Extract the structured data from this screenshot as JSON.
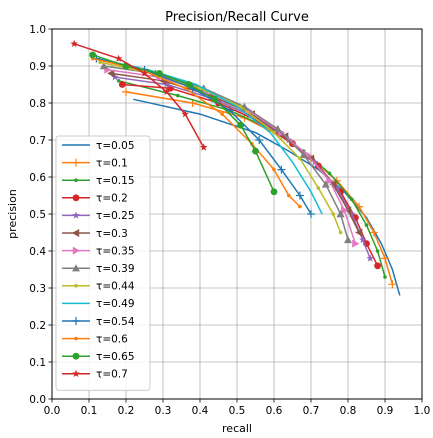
{
  "chart_data": {
    "type": "line",
    "title": "Precision/Recall Curve",
    "xlabel": "recall",
    "ylabel": "precision",
    "xlim": [
      0.0,
      1.0
    ],
    "ylim": [
      0.0,
      1.0
    ],
    "xticks": [
      "0.0",
      "0.1",
      "0.2",
      "0.3",
      "0.4",
      "0.5",
      "0.6",
      "0.7",
      "0.8",
      "0.9",
      "1.0"
    ],
    "yticks": [
      "0.0",
      "0.1",
      "0.2",
      "0.3",
      "0.4",
      "0.5",
      "0.6",
      "0.7",
      "0.8",
      "0.9",
      "1.0"
    ],
    "grid": true,
    "legend_position": "lower-left",
    "series": [
      {
        "name": "τ=0.05",
        "color": "#1f77b4",
        "marker": "none",
        "x": [
          0.22,
          0.4,
          0.55,
          0.64,
          0.72,
          0.79,
          0.85,
          0.89,
          0.92,
          0.94
        ],
        "y": [
          0.81,
          0.77,
          0.72,
          0.67,
          0.62,
          0.56,
          0.49,
          0.42,
          0.35,
          0.28
        ]
      },
      {
        "name": "τ=0.1",
        "color": "#ff7f0e",
        "marker": "plus",
        "x": [
          0.2,
          0.38,
          0.52,
          0.62,
          0.7,
          0.77,
          0.83,
          0.87,
          0.9,
          0.92
        ],
        "y": [
          0.83,
          0.8,
          0.76,
          0.71,
          0.65,
          0.59,
          0.52,
          0.45,
          0.38,
          0.31
        ]
      },
      {
        "name": "τ=0.15",
        "color": "#2ca02c",
        "marker": "dot",
        "x": [
          0.18,
          0.34,
          0.48,
          0.59,
          0.68,
          0.75,
          0.81,
          0.85,
          0.88,
          0.9
        ],
        "y": [
          0.86,
          0.82,
          0.78,
          0.73,
          0.67,
          0.61,
          0.54,
          0.47,
          0.4,
          0.33
        ]
      },
      {
        "name": "τ=0.2",
        "color": "#d62728",
        "marker": "circle",
        "x": [
          0.19,
          0.32,
          0.45,
          0.56,
          0.65,
          0.72,
          0.78,
          0.82,
          0.85,
          0.88
        ],
        "y": [
          0.85,
          0.84,
          0.8,
          0.75,
          0.69,
          0.63,
          0.56,
          0.49,
          0.42,
          0.36
        ]
      },
      {
        "name": "τ=0.25",
        "color": "#9467bd",
        "marker": "star",
        "x": [
          0.17,
          0.31,
          0.44,
          0.55,
          0.64,
          0.71,
          0.77,
          0.81,
          0.84,
          0.86
        ],
        "y": [
          0.87,
          0.85,
          0.81,
          0.76,
          0.7,
          0.64,
          0.57,
          0.5,
          0.43,
          0.38
        ]
      },
      {
        "name": "τ=0.3",
        "color": "#8c564b",
        "marker": "triangle-left",
        "x": [
          0.16,
          0.3,
          0.43,
          0.54,
          0.63,
          0.7,
          0.76,
          0.8,
          0.83
        ],
        "y": [
          0.88,
          0.86,
          0.82,
          0.77,
          0.71,
          0.65,
          0.58,
          0.51,
          0.45
        ]
      },
      {
        "name": "τ=0.35",
        "color": "#e377c2",
        "marker": "triangle-right",
        "x": [
          0.15,
          0.29,
          0.42,
          0.53,
          0.62,
          0.69,
          0.75,
          0.79,
          0.82
        ],
        "y": [
          0.89,
          0.87,
          0.83,
          0.78,
          0.72,
          0.66,
          0.59,
          0.51,
          0.42
        ]
      },
      {
        "name": "τ=0.39",
        "color": "#7f7f7f",
        "marker": "triangle-up",
        "x": [
          0.14,
          0.28,
          0.41,
          0.52,
          0.61,
          0.68,
          0.74,
          0.78,
          0.8
        ],
        "y": [
          0.9,
          0.88,
          0.84,
          0.79,
          0.73,
          0.66,
          0.58,
          0.5,
          0.43
        ]
      },
      {
        "name": "τ=0.44",
        "color": "#bcbd22",
        "marker": "dot",
        "x": [
          0.13,
          0.27,
          0.4,
          0.51,
          0.6,
          0.67,
          0.72,
          0.76,
          0.78
        ],
        "y": [
          0.91,
          0.88,
          0.84,
          0.79,
          0.72,
          0.65,
          0.57,
          0.5,
          0.45
        ]
      },
      {
        "name": "τ=0.49",
        "color": "#17becf",
        "marker": "none",
        "x": [
          0.12,
          0.26,
          0.39,
          0.5,
          0.59,
          0.65,
          0.7,
          0.73
        ],
        "y": [
          0.92,
          0.89,
          0.85,
          0.79,
          0.72,
          0.64,
          0.56,
          0.5
        ]
      },
      {
        "name": "τ=0.54",
        "color": "#1f77b4",
        "marker": "plus",
        "x": [
          0.12,
          0.25,
          0.38,
          0.48,
          0.56,
          0.62,
          0.67,
          0.7
        ],
        "y": [
          0.92,
          0.89,
          0.84,
          0.78,
          0.7,
          0.62,
          0.55,
          0.5
        ]
      },
      {
        "name": "τ=0.6",
        "color": "#ff7f0e",
        "marker": "dot",
        "x": [
          0.11,
          0.24,
          0.36,
          0.46,
          0.54,
          0.6,
          0.64,
          0.67
        ],
        "y": [
          0.92,
          0.89,
          0.84,
          0.77,
          0.69,
          0.62,
          0.55,
          0.52
        ]
      },
      {
        "name": "τ=0.65",
        "color": "#2ca02c",
        "marker": "circle",
        "x": [
          0.11,
          0.2,
          0.29,
          0.37,
          0.44,
          0.51,
          0.55,
          0.6
        ],
        "y": [
          0.93,
          0.9,
          0.88,
          0.85,
          0.81,
          0.74,
          0.67,
          0.56
        ]
      },
      {
        "name": "τ=0.7",
        "color": "#d62728",
        "marker": "star",
        "x": [
          0.06,
          0.18,
          0.25,
          0.31,
          0.36,
          0.41
        ],
        "y": [
          0.96,
          0.92,
          0.88,
          0.83,
          0.77,
          0.68
        ]
      }
    ]
  }
}
